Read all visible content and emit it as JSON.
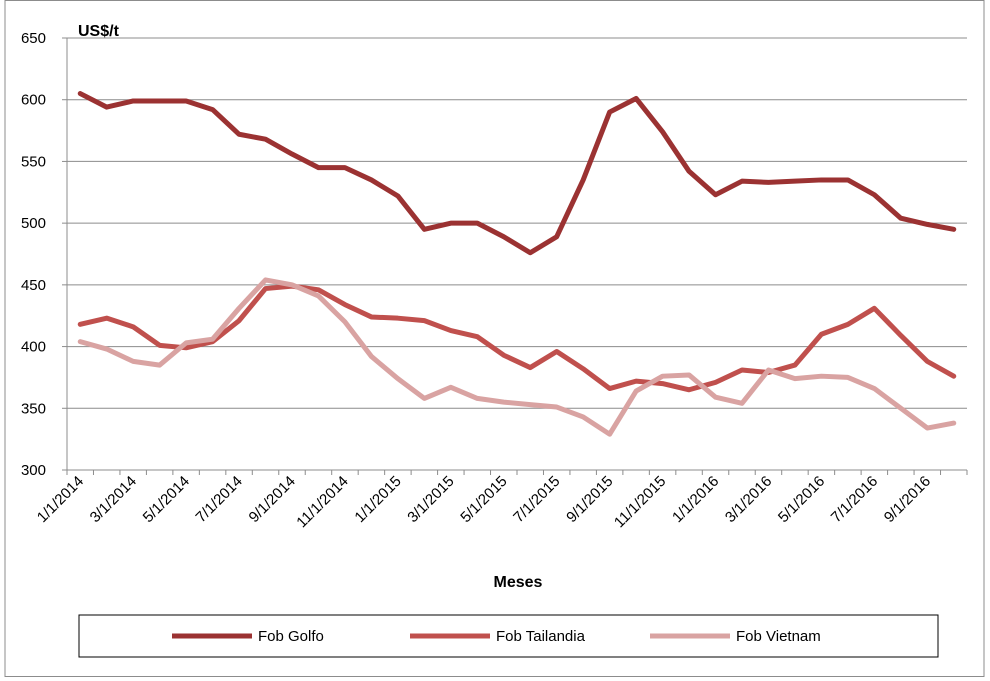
{
  "chart_data": {
    "type": "line",
    "title": "",
    "ylabel": "US$/t",
    "xlabel": "Meses",
    "ylim": [
      300,
      650
    ],
    "yticks": [
      300,
      350,
      400,
      450,
      500,
      550,
      600,
      650
    ],
    "grid": "horizontal",
    "legend_position": "bottom",
    "x": [
      "1/1/2014",
      "2/1/2014",
      "3/1/2014",
      "4/1/2014",
      "5/1/2014",
      "6/1/2014",
      "7/1/2014",
      "8/1/2014",
      "9/1/2014",
      "10/1/2014",
      "11/1/2014",
      "12/1/2014",
      "1/1/2015",
      "2/1/2015",
      "3/1/2015",
      "4/1/2015",
      "5/1/2015",
      "6/1/2015",
      "7/1/2015",
      "8/1/2015",
      "9/1/2015",
      "10/1/2015",
      "11/1/2015",
      "12/1/2015",
      "1/1/2016",
      "2/1/2016",
      "3/1/2016",
      "4/1/2016",
      "5/1/2016",
      "6/1/2016",
      "7/1/2016",
      "8/1/2016",
      "9/1/2016",
      "10/1/2016"
    ],
    "xtick_labels": [
      "1/1/2014",
      "3/1/2014",
      "5/1/2014",
      "7/1/2014",
      "9/1/2014",
      "11/1/2014",
      "1/1/2015",
      "3/1/2015",
      "5/1/2015",
      "7/1/2015",
      "9/1/2015",
      "11/1/2015",
      "1/1/2016",
      "3/1/2016",
      "5/1/2016",
      "7/1/2016",
      "9/1/2016"
    ],
    "series": [
      {
        "name": "Fob Golfo",
        "color": "#9b3232",
        "values": [
          605,
          594,
          599,
          599,
          599,
          592,
          572,
          568,
          556,
          545,
          545,
          535,
          522,
          495,
          500,
          500,
          489,
          476,
          489,
          535,
          590,
          601,
          574,
          542,
          523,
          534,
          533,
          534,
          535,
          535,
          523,
          504,
          499,
          495
        ]
      },
      {
        "name": "Fob Tailandia",
        "color": "#c0504d",
        "values": [
          418,
          423,
          416,
          401,
          399,
          404,
          421,
          447,
          449,
          446,
          434,
          424,
          423,
          421,
          413,
          408,
          393,
          383,
          396,
          382,
          366,
          372,
          370,
          365,
          371,
          381,
          379,
          385,
          410,
          418,
          431,
          409,
          388,
          376
        ]
      },
      {
        "name": "Fob Vietnam",
        "color": "#d9a3a2",
        "values": [
          404,
          398,
          388,
          385,
          403,
          406,
          431,
          454,
          450,
          441,
          420,
          392,
          374,
          358,
          367,
          358,
          355,
          353,
          351,
          343,
          329,
          364,
          376,
          377,
          359,
          354,
          381,
          374,
          376,
          375,
          366,
          350,
          334,
          338
        ]
      }
    ]
  }
}
